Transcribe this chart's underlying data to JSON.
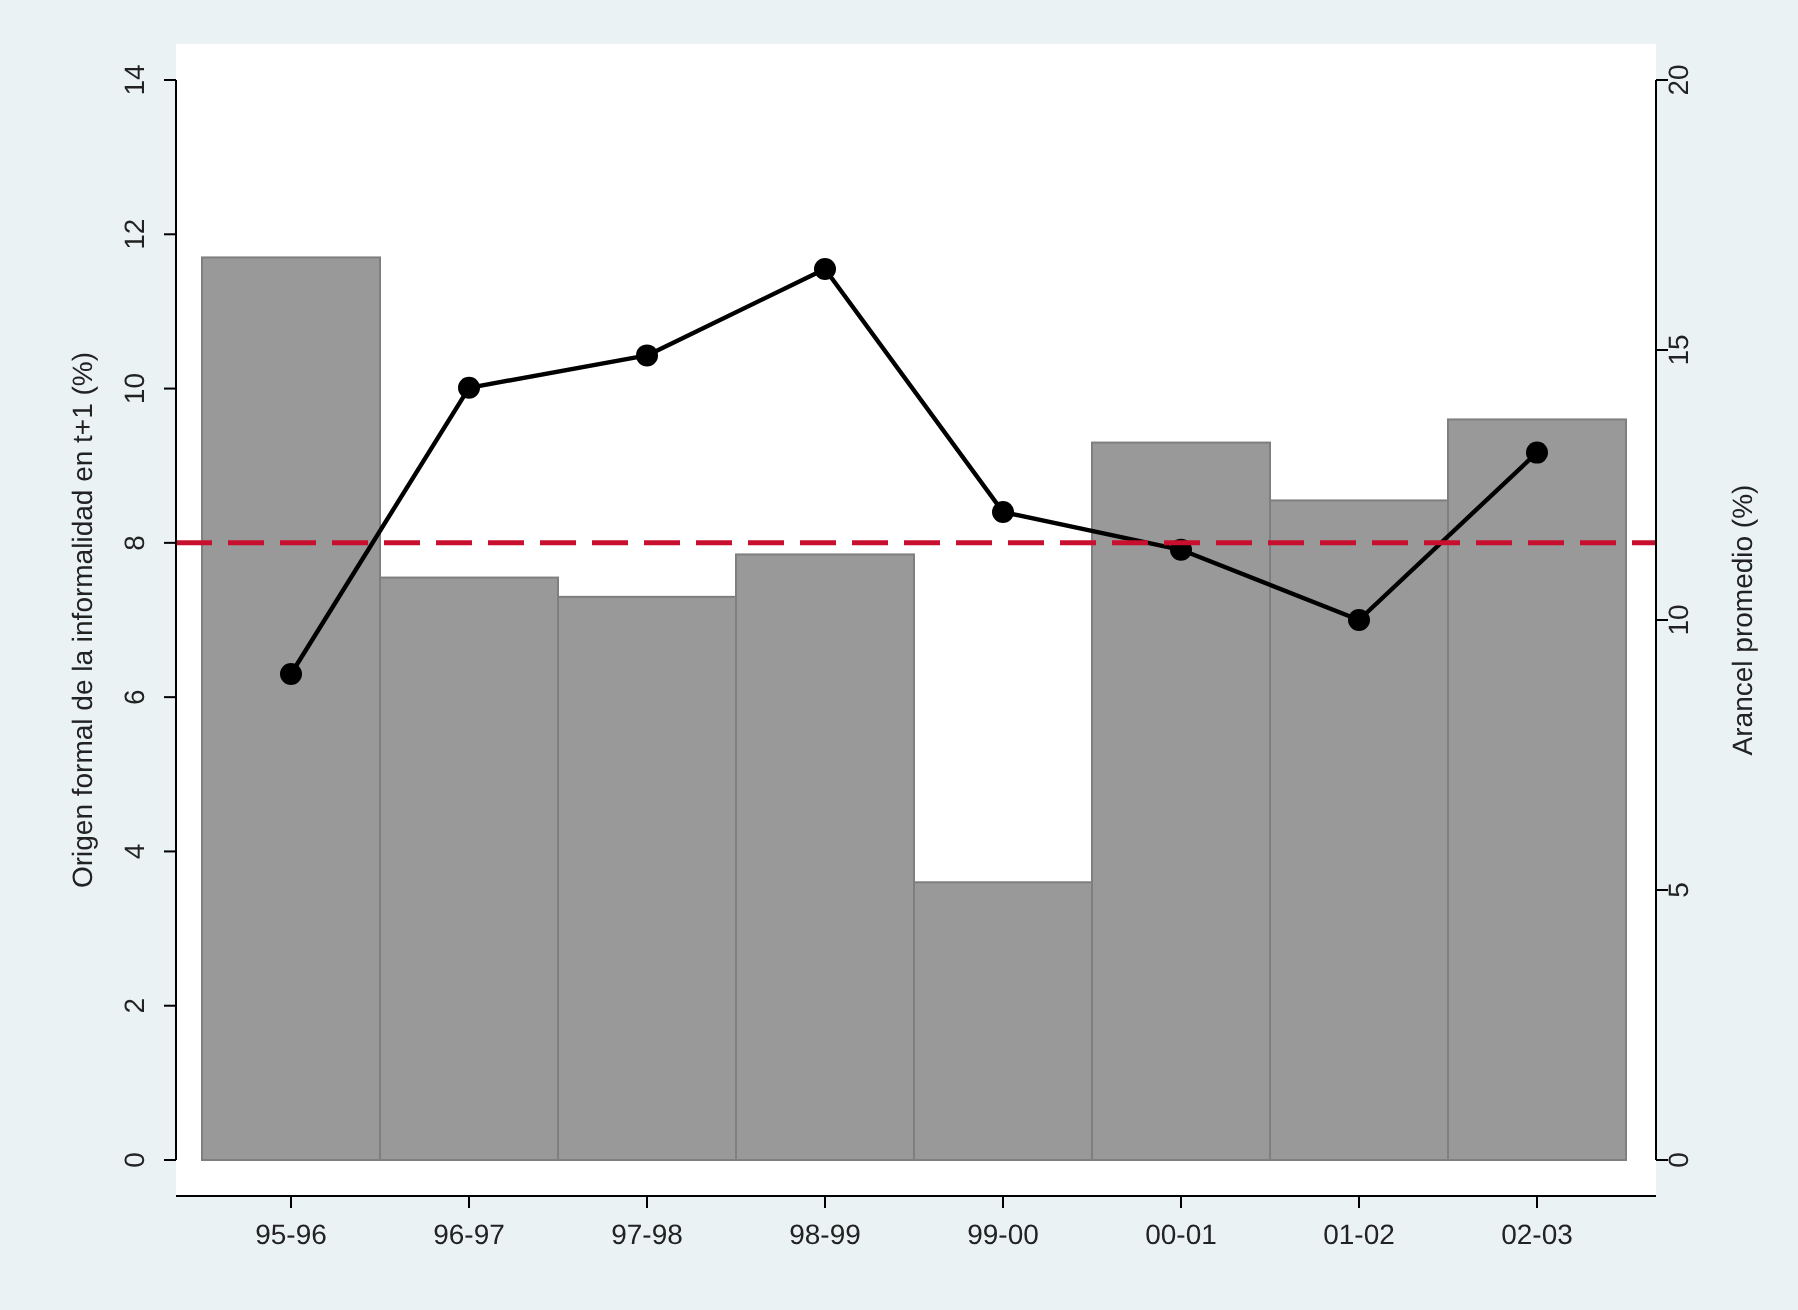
{
  "chart_data": {
    "type": "bar",
    "categories": [
      "95-96",
      "96-97",
      "97-98",
      "98-99",
      "99-00",
      "00-01",
      "01-02",
      "02-03"
    ],
    "ylabel": "Origen formal de la informalidad en t+1 (%)",
    "y2label": "Arancel promedio (%)",
    "ylim": [
      0,
      14
    ],
    "yticks": [
      0,
      2,
      4,
      6,
      8,
      10,
      12,
      14
    ],
    "y2lim": [
      0,
      20
    ],
    "y2ticks": [
      0,
      5,
      10,
      15,
      20
    ],
    "series": [
      {
        "color": "#999999",
        "values": [
          11.7,
          7.55,
          7.3,
          7.85,
          3.6,
          9.3,
          8.55,
          9.6
        ]
      },
      {
        "type": "line",
        "axis": "y2",
        "color": "#000000",
        "marker": "circle",
        "line_style": "solid",
        "values": [
          9.0,
          14.3,
          14.9,
          16.5,
          12.0,
          11.3,
          10.0,
          13.1
        ]
      }
    ],
    "ref_lines": [
      {
        "axis": "y",
        "value": 8,
        "color": "#c8102e",
        "line_style": "dashed"
      }
    ],
    "grid": false
  }
}
